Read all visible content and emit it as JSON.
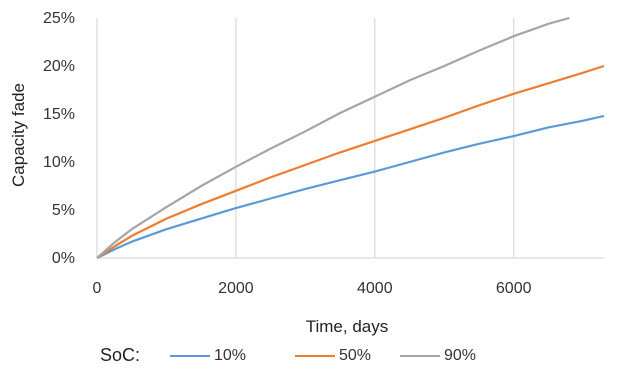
{
  "chart_data": {
    "type": "line",
    "title": "",
    "xlabel": "Time, days",
    "ylabel": "Capacity fade",
    "xlim": [
      0,
      7300
    ],
    "ylim": [
      0,
      25
    ],
    "x_ticks": [
      0,
      2000,
      4000,
      6000
    ],
    "y_ticks": [
      0,
      5,
      10,
      15,
      20,
      25
    ],
    "x_tick_labels": [
      "0",
      "2000",
      "4000",
      "6000"
    ],
    "y_tick_labels": [
      "0%",
      "5%",
      "10%",
      "15%",
      "20%",
      "25%"
    ],
    "grid": "vertical",
    "legend": {
      "title": "SoC:",
      "position": "bottom"
    },
    "series": [
      {
        "name": "10%",
        "color": "#5b9bd5",
        "x": [
          0,
          250,
          500,
          1000,
          1500,
          2000,
          2500,
          3000,
          3500,
          4000,
          4500,
          5000,
          5500,
          6000,
          6500,
          7000,
          7300
        ],
        "y": [
          0,
          0.9,
          1.7,
          3.0,
          4.1,
          5.2,
          6.2,
          7.2,
          8.1,
          9.0,
          10.0,
          11.0,
          11.9,
          12.7,
          13.6,
          14.3,
          14.8
        ]
      },
      {
        "name": "50%",
        "color": "#ed7d31",
        "x": [
          0,
          250,
          500,
          1000,
          1500,
          2000,
          2500,
          3000,
          3500,
          4000,
          4500,
          5000,
          5500,
          6000,
          6500,
          7000,
          7300
        ],
        "y": [
          0,
          1.2,
          2.3,
          4.1,
          5.6,
          7.0,
          8.4,
          9.7,
          11.0,
          12.2,
          13.4,
          14.6,
          15.9,
          17.1,
          18.2,
          19.3,
          20.0
        ]
      },
      {
        "name": "90%",
        "color": "#a5a5a5",
        "x": [
          0,
          250,
          500,
          1000,
          1500,
          2000,
          2500,
          3000,
          3500,
          4000,
          4500,
          5000,
          5500,
          6000,
          6500,
          6800
        ],
        "y": [
          0,
          1.6,
          3.0,
          5.3,
          7.5,
          9.5,
          11.4,
          13.2,
          15.1,
          16.8,
          18.5,
          20.0,
          21.6,
          23.1,
          24.4,
          25.0
        ]
      }
    ]
  }
}
